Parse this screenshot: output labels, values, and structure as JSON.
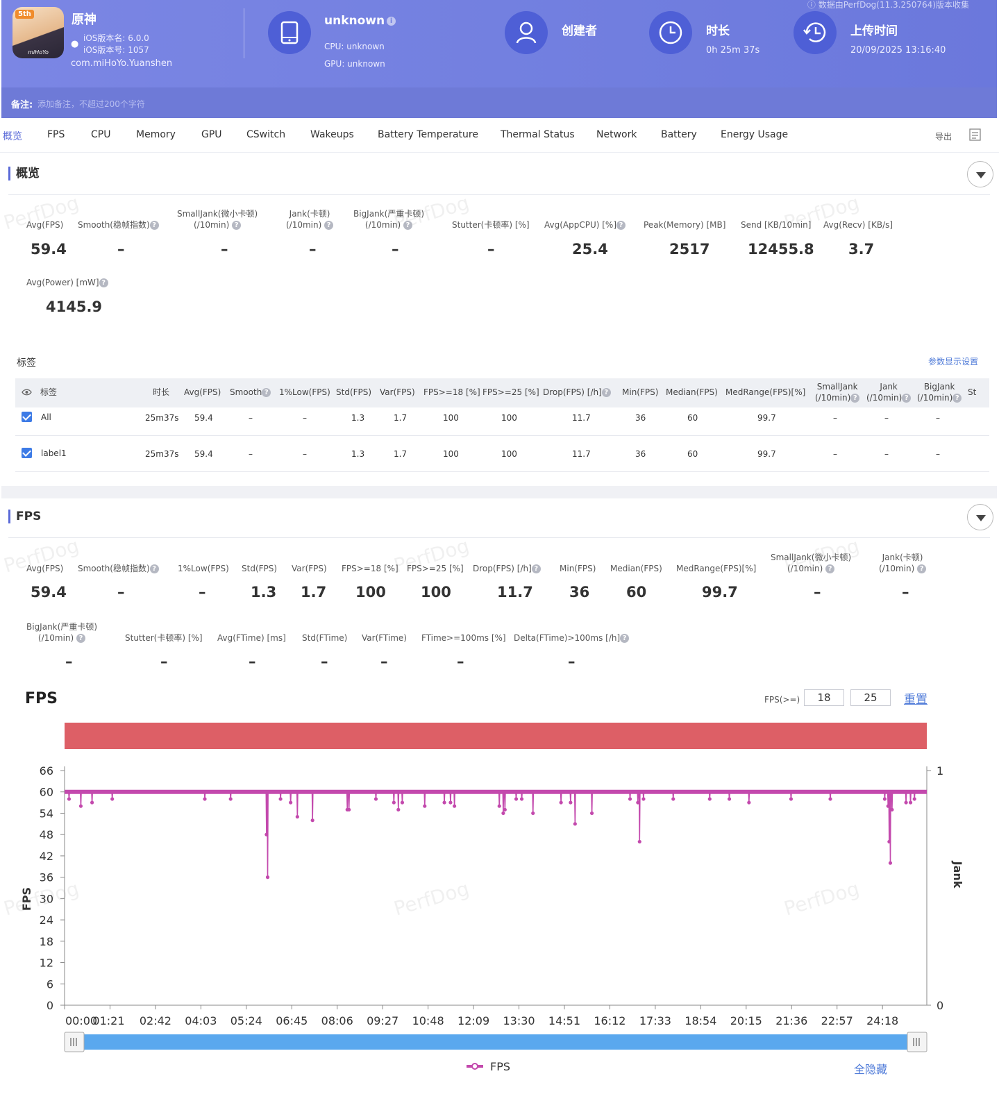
{
  "header": {
    "top_note": "数据由PerfDog(11.3.250764)版本收集",
    "app_badge": "5th",
    "app_logo": "miHoYo",
    "app_name": "原神",
    "ios_version_name": "iOS版本名: 6.0.0",
    "ios_version_code": "iOS版本号: 1057",
    "package": "com.miHoYo.Yuanshen",
    "device_title": "unknown",
    "cpu": "CPU: unknown",
    "gpu": "GPU: unknown",
    "creator_label": "创建者",
    "duration_label": "时长",
    "duration_value": "0h 25m 37s",
    "upload_label": "上传时间",
    "upload_value": "20/09/2025 13:16:40",
    "info_mark": "i"
  },
  "note": {
    "label": "备注:",
    "placeholder": "添加备注，不超过200个字符"
  },
  "tabs": [
    "概览",
    "FPS",
    "CPU",
    "Memory",
    "GPU",
    "CSwitch",
    "Wakeups",
    "Battery Temperature",
    "Thermal Status",
    "Network",
    "Battery",
    "Energy Usage"
  ],
  "export_label": "导出",
  "watermark": "PerfDog",
  "help_mark": "?",
  "overview": {
    "title": "概览",
    "metrics": [
      {
        "label": "Avg(FPS)",
        "value": "59.4"
      },
      {
        "label": "Smooth(稳帧指数)",
        "value": "–"
      },
      {
        "label": "SmallJank(微小卡顿)",
        "label2": "(/10min)",
        "value": "–"
      },
      {
        "label": "Jank(卡顿)",
        "label2": "(/10min)",
        "value": "–"
      },
      {
        "label": "BigJank(严重卡顿)",
        "label2": "(/10min)",
        "value": "–"
      },
      {
        "label": "Stutter(卡顿率) [%]",
        "value": "–"
      },
      {
        "label": "Avg(AppCPU) [%]",
        "value": "25.4"
      },
      {
        "label": "Peak(Memory) [MB]",
        "value": "2517"
      },
      {
        "label": "Send [KB/10min]",
        "value": "12455.8"
      },
      {
        "label": "Avg(Recv) [KB/s]",
        "value": "3.7"
      },
      {
        "label": "Avg(Power) [mW]",
        "value": "4145.9"
      }
    ]
  },
  "tags": {
    "title": "标签",
    "settings": "参数显示设置",
    "headers": [
      "标签",
      "时长",
      "Avg(FPS)",
      "Smooth",
      "1%Low(FPS)",
      "Std(FPS)",
      "Var(FPS)",
      "FPS>=18 [%]",
      "FPS>=25 [%]",
      "Drop(FPS) [/h]",
      "Min(FPS)",
      "Median(FPS)",
      "MedRange(FPS)[%]",
      "SmallJank",
      "Jank",
      "BigJank",
      "St"
    ],
    "per10": "(/10min)",
    "rows": [
      {
        "name": "All",
        "cells": [
          "25m37s",
          "59.4",
          "–",
          "–",
          "1.3",
          "1.7",
          "100",
          "100",
          "11.7",
          "36",
          "60",
          "99.7",
          "–",
          "–",
          "–"
        ]
      },
      {
        "name": "label1",
        "cells": [
          "25m37s",
          "59.4",
          "–",
          "–",
          "1.3",
          "1.7",
          "100",
          "100",
          "11.7",
          "36",
          "60",
          "99.7",
          "–",
          "–",
          "–"
        ]
      }
    ]
  },
  "fps_section": {
    "title": "FPS",
    "metrics_row1": [
      {
        "label": "Avg(FPS)",
        "value": "59.4"
      },
      {
        "label": "Smooth(稳帧指数)",
        "value": "–"
      },
      {
        "label": "1%Low(FPS)",
        "value": "–"
      },
      {
        "label": "Std(FPS)",
        "value": "1.3"
      },
      {
        "label": "Var(FPS)",
        "value": "1.7"
      },
      {
        "label": "FPS>=18 [%]",
        "value": "100"
      },
      {
        "label": "FPS>=25 [%]",
        "value": "100"
      },
      {
        "label": "Drop(FPS) [/h]",
        "value": "11.7"
      },
      {
        "label": "Min(FPS)",
        "value": "36"
      },
      {
        "label": "Median(FPS)",
        "value": "60"
      },
      {
        "label": "MedRange(FPS)[%]",
        "value": "99.7"
      },
      {
        "label": "SmallJank(微小卡顿)",
        "label2": "(/10min)",
        "value": "–"
      },
      {
        "label": "Jank(卡顿)",
        "label2": "(/10min)",
        "value": "–"
      }
    ],
    "metrics_row2": [
      {
        "label": "BigJank(严重卡顿)",
        "label2": "(/10min)",
        "value": "–"
      },
      {
        "label": "Stutter(卡顿率) [%]",
        "value": "–"
      },
      {
        "label": "Avg(FTime) [ms]",
        "value": "–"
      },
      {
        "label": "Std(FTime)",
        "value": "–"
      },
      {
        "label": "Var(FTime)",
        "value": "–"
      },
      {
        "label": "FTime>=100ms [%]",
        "value": "–"
      },
      {
        "label": "Delta(FTime)>100ms [/h]",
        "value": "–"
      }
    ]
  },
  "chart_controls": {
    "fps_ge_label": "FPS(>=)",
    "threshold1": "18",
    "threshold2": "25",
    "reset": "重置",
    "hide_all": "全隐藏",
    "band_color": "#dd5f66",
    "line_color": "#c349ad",
    "slider_color": "#5aa8ee"
  },
  "chart_data": {
    "type": "line",
    "title": "FPS",
    "ylabel": "FPS",
    "y2label": "Jank",
    "ylim": [
      0,
      66
    ],
    "y2lim": [
      0,
      1
    ],
    "yticks": [
      0,
      6,
      12,
      18,
      24,
      30,
      36,
      42,
      48,
      54,
      60,
      66
    ],
    "y2ticks": [
      0,
      1
    ],
    "xlim_seconds": [
      0,
      1537
    ],
    "xticks": [
      "00:00",
      "01:21",
      "02:42",
      "04:03",
      "05:24",
      "06:45",
      "08:06",
      "09:27",
      "10:48",
      "12:09",
      "13:30",
      "14:51",
      "16:12",
      "17:33",
      "18:54",
      "20:15",
      "21:36",
      "22:57",
      "24:18"
    ],
    "series": [
      {
        "name": "FPS",
        "baseline": 60,
        "dips": [
          {
            "t": "00:08",
            "fps": 58
          },
          {
            "t": "00:29",
            "fps": 56
          },
          {
            "t": "00:49",
            "fps": 57
          },
          {
            "t": "01:25",
            "fps": 58
          },
          {
            "t": "04:10",
            "fps": 58
          },
          {
            "t": "04:56",
            "fps": 58
          },
          {
            "t": "06:00",
            "fps": 48
          },
          {
            "t": "06:02",
            "fps": 36
          },
          {
            "t": "06:25",
            "fps": 58
          },
          {
            "t": "06:43",
            "fps": 57
          },
          {
            "t": "06:55",
            "fps": 53
          },
          {
            "t": "07:22",
            "fps": 52
          },
          {
            "t": "08:24",
            "fps": 55
          },
          {
            "t": "08:27",
            "fps": 55
          },
          {
            "t": "09:15",
            "fps": 58
          },
          {
            "t": "09:47",
            "fps": 57
          },
          {
            "t": "09:55",
            "fps": 55
          },
          {
            "t": "10:02",
            "fps": 57
          },
          {
            "t": "10:42",
            "fps": 56
          },
          {
            "t": "11:17",
            "fps": 57
          },
          {
            "t": "11:28",
            "fps": 57
          },
          {
            "t": "11:35",
            "fps": 56
          },
          {
            "t": "12:55",
            "fps": 56
          },
          {
            "t": "13:02",
            "fps": 54
          },
          {
            "t": "13:05",
            "fps": 55
          },
          {
            "t": "13:25",
            "fps": 58
          },
          {
            "t": "13:35",
            "fps": 58
          },
          {
            "t": "13:55",
            "fps": 54
          },
          {
            "t": "14:45",
            "fps": 57
          },
          {
            "t": "15:02",
            "fps": 57
          },
          {
            "t": "15:10",
            "fps": 51
          },
          {
            "t": "15:40",
            "fps": 54
          },
          {
            "t": "16:48",
            "fps": 58
          },
          {
            "t": "17:02",
            "fps": 57
          },
          {
            "t": "17:05",
            "fps": 46
          },
          {
            "t": "17:12",
            "fps": 58
          },
          {
            "t": "18:05",
            "fps": 58
          },
          {
            "t": "19:10",
            "fps": 58
          },
          {
            "t": "19:45",
            "fps": 58
          },
          {
            "t": "20:20",
            "fps": 57
          },
          {
            "t": "21:35",
            "fps": 58
          },
          {
            "t": "22:45",
            "fps": 58
          },
          {
            "t": "24:22",
            "fps": 58
          },
          {
            "t": "24:28",
            "fps": 56
          },
          {
            "t": "24:30",
            "fps": 46
          },
          {
            "t": "24:32",
            "fps": 40
          },
          {
            "t": "24:35",
            "fps": 55
          },
          {
            "t": "25:00",
            "fps": 57
          },
          {
            "t": "25:08",
            "fps": 57
          },
          {
            "t": "25:15",
            "fps": 58
          }
        ]
      }
    ],
    "legend": "bottom-center"
  }
}
